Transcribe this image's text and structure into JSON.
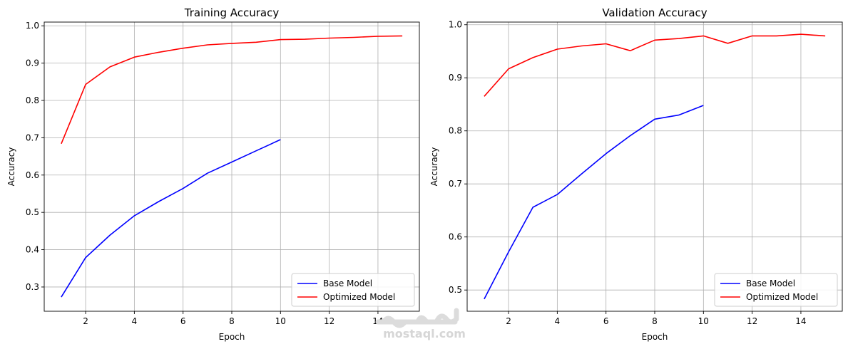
{
  "chart_data": [
    {
      "type": "line",
      "title": "Training Accuracy",
      "xlabel": "Epoch",
      "ylabel": "Accuracy",
      "xlim": [
        0.3,
        15.7
      ],
      "ylim": [
        0.235,
        1.01
      ],
      "xticks": [
        2,
        4,
        6,
        8,
        10,
        12,
        14
      ],
      "xtick_labels": [
        "2",
        "4",
        "6",
        "8",
        "10",
        "12",
        "14"
      ],
      "yticks": [
        0.3,
        0.4,
        0.5,
        0.6,
        0.7,
        0.8,
        0.9,
        1.0
      ],
      "ytick_labels": [
        "0.3",
        "0.4",
        "0.5",
        "0.6",
        "0.7",
        "0.8",
        "0.9",
        "1.0"
      ],
      "grid": true,
      "legend_position": "lower-right",
      "series": [
        {
          "name": "Base Model",
          "color": "#0000ff",
          "x": [
            1,
            2,
            3,
            4,
            5,
            6,
            7,
            8,
            9,
            10
          ],
          "y": [
            0.273,
            0.379,
            0.439,
            0.491,
            0.529,
            0.564,
            0.605,
            0.635,
            0.665,
            0.695
          ]
        },
        {
          "name": "Optimized Model",
          "color": "#ff0000",
          "x": [
            1,
            2,
            3,
            4,
            5,
            6,
            7,
            8,
            9,
            10,
            11,
            12,
            13,
            14,
            15
          ],
          "y": [
            0.684,
            0.843,
            0.89,
            0.916,
            0.929,
            0.94,
            0.949,
            0.953,
            0.956,
            0.963,
            0.964,
            0.967,
            0.969,
            0.972,
            0.973
          ]
        }
      ]
    },
    {
      "type": "line",
      "title": "Validation Accuracy",
      "xlabel": "Epoch",
      "ylabel": "Accuracy",
      "xlim": [
        0.3,
        15.7
      ],
      "ylim": [
        0.46,
        1.005
      ],
      "xticks": [
        2,
        4,
        6,
        8,
        10,
        12,
        14
      ],
      "xtick_labels": [
        "2",
        "4",
        "6",
        "8",
        "10",
        "12",
        "14"
      ],
      "yticks": [
        0.5,
        0.6,
        0.7,
        0.8,
        0.9,
        1.0
      ],
      "ytick_labels": [
        "0.5",
        "0.6",
        "0.7",
        "0.8",
        "0.9",
        "1.0"
      ],
      "grid": true,
      "legend_position": "lower-right",
      "series": [
        {
          "name": "Base Model",
          "color": "#0000ff",
          "x": [
            1,
            2,
            3,
            4,
            5,
            6,
            7,
            8,
            9,
            10
          ],
          "y": [
            0.483,
            0.572,
            0.656,
            0.68,
            0.719,
            0.757,
            0.791,
            0.822,
            0.83,
            0.848
          ]
        },
        {
          "name": "Optimized Model",
          "color": "#ff0000",
          "x": [
            1,
            2,
            3,
            4,
            5,
            6,
            7,
            8,
            9,
            10,
            11,
            12,
            13,
            14,
            15
          ],
          "y": [
            0.865,
            0.917,
            0.938,
            0.954,
            0.96,
            0.964,
            0.951,
            0.971,
            0.974,
            0.979,
            0.965,
            0.979,
            0.979,
            0.982,
            0.979
          ]
        }
      ]
    }
  ],
  "watermark": {
    "text": "mostaql.com",
    "logo": "مستقل",
    "color": "#d6d6d6"
  }
}
